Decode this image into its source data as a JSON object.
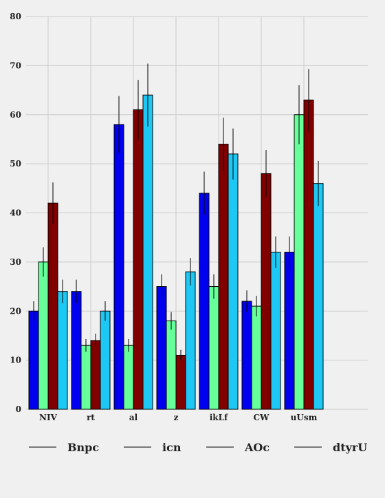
{
  "chart_data": {
    "type": "bar",
    "categories": [
      "NIV",
      "rt",
      "al",
      "z",
      "ikLf",
      "CW",
      "uUsm"
    ],
    "series": [
      {
        "name": "Bnpc",
        "color": "#0000ee",
        "values": [
          20,
          24,
          58,
          25,
          44,
          22,
          32
        ],
        "errors": [
          2.0,
          2.4,
          5.8,
          2.5,
          4.4,
          2.2,
          3.2
        ]
      },
      {
        "name": "icn",
        "color": "#66ff99",
        "values": [
          30,
          13,
          13,
          18,
          25,
          21,
          60
        ],
        "errors": [
          3.0,
          1.3,
          1.3,
          1.8,
          2.5,
          2.1,
          6.0
        ]
      },
      {
        "name": "AOc",
        "color": "#800000",
        "values": [
          42,
          14,
          61,
          11,
          54,
          48,
          63
        ],
        "errors": [
          4.2,
          1.4,
          6.1,
          1.1,
          5.4,
          4.8,
          6.3
        ]
      },
      {
        "name": "dtyrU",
        "color": "#1ec8f5",
        "values": [
          24,
          20,
          64,
          28,
          52,
          32,
          46
        ],
        "errors": [
          2.4,
          2.0,
          6.4,
          2.8,
          5.2,
          3.2,
          4.6
        ]
      }
    ],
    "title": "",
    "xlabel": "",
    "ylabel": "",
    "ylim": [
      0,
      80
    ],
    "yticks": [
      "0",
      "10",
      "20",
      "30",
      "40",
      "50",
      "60",
      "70",
      "80"
    ],
    "grid": true,
    "legend_position": "bottom"
  }
}
